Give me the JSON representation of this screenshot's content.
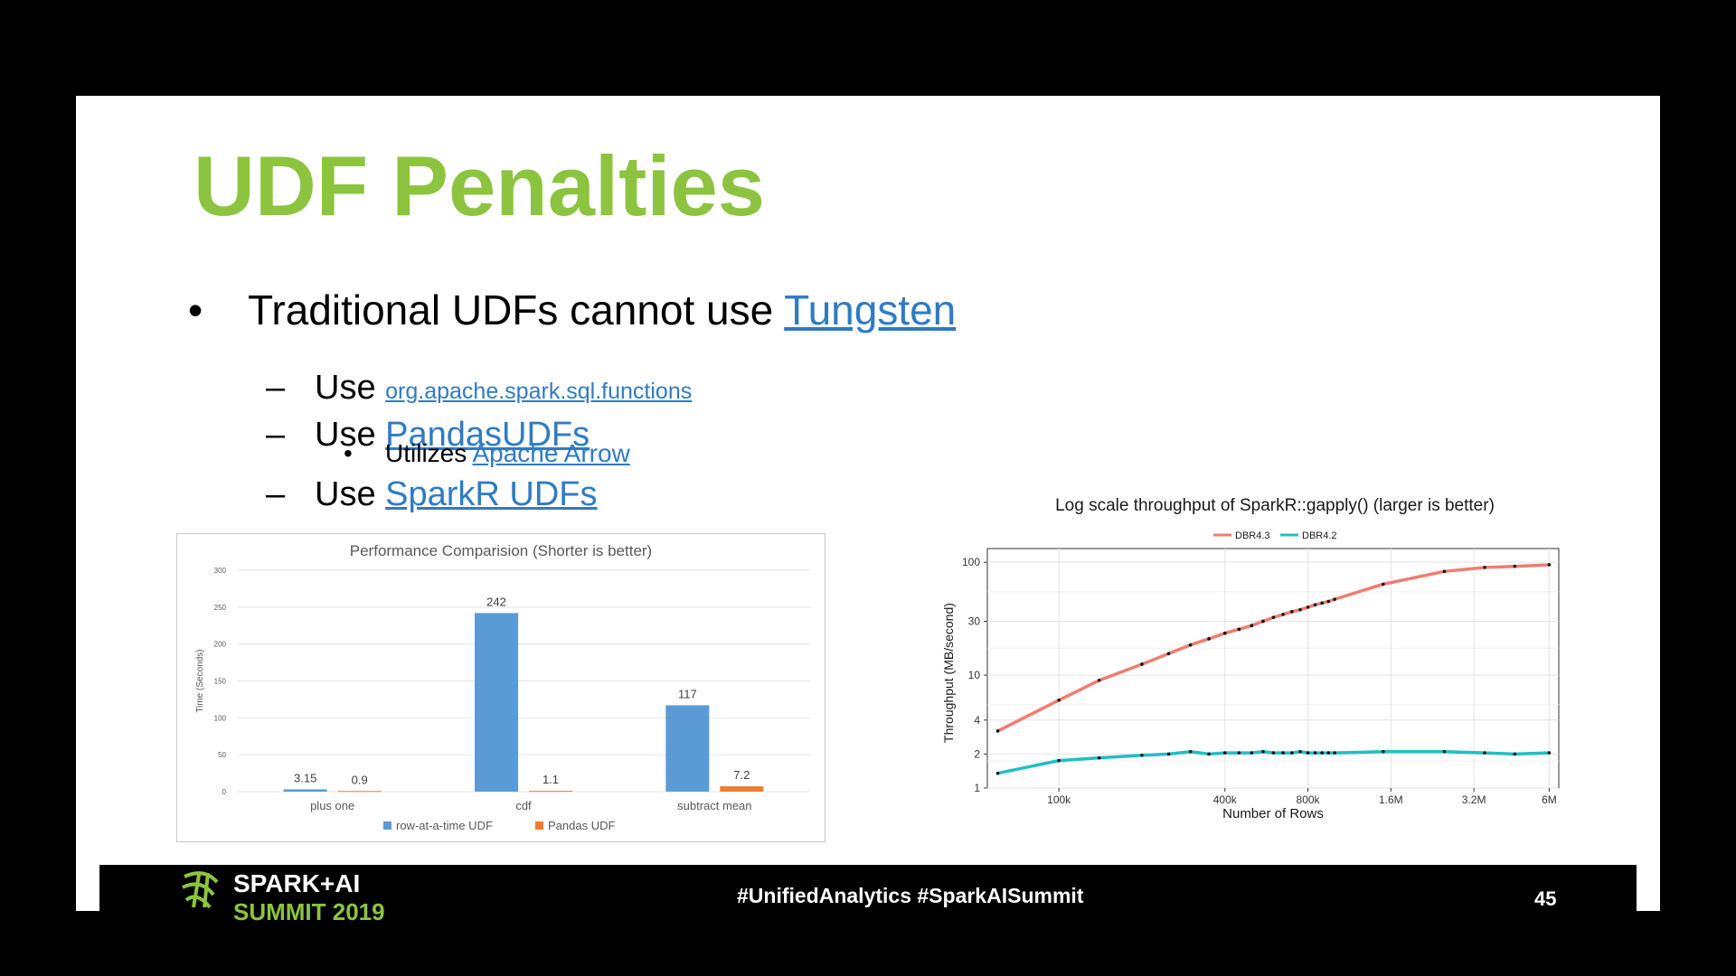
{
  "slide": {
    "title": "UDF Penalties",
    "bullets": {
      "main": {
        "mark": "•",
        "text": "Traditional UDFs cannot use ",
        "link": "Tungsten"
      },
      "sub1": {
        "mark": "–",
        "text": "Use ",
        "link": "org.apache.spark.sql.functions"
      },
      "sub2": {
        "mark": "–",
        "text": "Use ",
        "link": "PandasUDFs"
      },
      "sub2a": {
        "mark": "•",
        "text": "Utilizes ",
        "link": "Apache Arrow"
      },
      "sub3": {
        "mark": "–",
        "text": "Use ",
        "link": "SparkR UDFs"
      }
    }
  },
  "footer": {
    "logo_text": "SPARK+AI",
    "logo_sub": "SUMMIT 2019",
    "hashtags": "#UnifiedAnalytics #SparkAISummit",
    "page_number": "45"
  },
  "chart_data": [
    {
      "type": "bar",
      "title": "Performance Comparision (Shorter is better)",
      "ylabel": "Time (Seconds)",
      "ylim": [
        0,
        300
      ],
      "yticks": [
        0,
        50,
        100,
        150,
        200,
        250,
        300
      ],
      "categories": [
        "plus one",
        "cdf",
        "subtract mean"
      ],
      "series": [
        {
          "name": "row-at-a-time UDF",
          "values": [
            3.15,
            242,
            117
          ],
          "labels": [
            "3.15",
            "242",
            "117"
          ],
          "color": "#5b9bd5"
        },
        {
          "name": "Pandas UDF",
          "values": [
            0.9,
            1.1,
            7.2
          ],
          "labels": [
            "0.9",
            "1.1",
            "7.2"
          ],
          "color": "#ed7d31"
        }
      ],
      "legend_position": "bottom",
      "grid": true
    },
    {
      "type": "line",
      "title": "Log scale throughput of SparkR::gapply() (larger is better)",
      "xlabel": "Number of Rows",
      "ylabel": "Throughput (MB/second)",
      "x_scale": "log",
      "y_scale": "log",
      "xlim": [
        55000,
        6500000
      ],
      "ylim": [
        1,
        110
      ],
      "xticks": [
        100000,
        400000,
        800000,
        1600000,
        3200000,
        6000000
      ],
      "xtick_labels": [
        "100k",
        "400k",
        "800k",
        "1.6M",
        "3.2M",
        "6M"
      ],
      "yticks": [
        1,
        2,
        4,
        10,
        30,
        100
      ],
      "ytick_labels": [
        "1",
        "2",
        "4",
        "10",
        "30",
        "100"
      ],
      "legend_position": "top",
      "grid": true,
      "series": [
        {
          "name": "DBR4.3",
          "color": "#f07d72",
          "x": [
            60000,
            100000,
            140000,
            200000,
            250000,
            300000,
            350000,
            400000,
            450000,
            500000,
            550000,
            600000,
            650000,
            700000,
            750000,
            800000,
            850000,
            900000,
            950000,
            1000000,
            1500000,
            2500000,
            3500000,
            4500000,
            6000000
          ],
          "y": [
            3.2,
            6.0,
            9.0,
            12.5,
            15.5,
            18.5,
            21.0,
            23.5,
            25.5,
            27.5,
            30.0,
            32.5,
            34.5,
            36.5,
            38.0,
            40.0,
            42.0,
            43.5,
            45.0,
            47.0,
            64.0,
            83.0,
            90.0,
            92.0,
            95.0
          ]
        },
        {
          "name": "DBR4.2",
          "color": "#1fbfc4",
          "x": [
            60000,
            100000,
            140000,
            200000,
            250000,
            300000,
            350000,
            400000,
            450000,
            500000,
            550000,
            600000,
            650000,
            700000,
            750000,
            800000,
            850000,
            900000,
            950000,
            1000000,
            1500000,
            2500000,
            3500000,
            4500000,
            6000000
          ],
          "y": [
            1.35,
            1.75,
            1.85,
            1.95,
            2.0,
            2.1,
            2.0,
            2.05,
            2.05,
            2.05,
            2.1,
            2.05,
            2.05,
            2.05,
            2.1,
            2.05,
            2.05,
            2.05,
            2.05,
            2.05,
            2.1,
            2.1,
            2.05,
            2.0,
            2.05
          ]
        }
      ]
    }
  ]
}
